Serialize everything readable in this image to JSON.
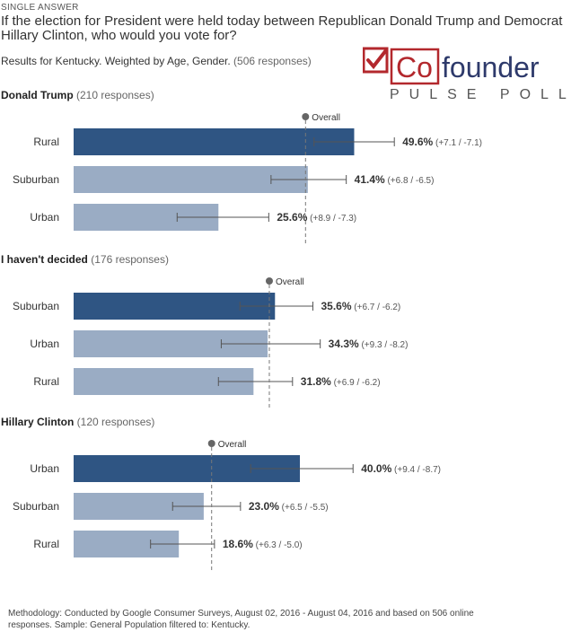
{
  "header": {
    "tag": "SINGLE ANSWER",
    "question_line1": "If the election for President were held today between Republican Donald Trump and Democrat",
    "question_line2": "Hillary Clinton, who would you vote for?",
    "subtitle": "Results for Kentucky. Weighted by Age, Gender.",
    "subtitle_count": "(506 responses)"
  },
  "logo": {
    "brand_co": "Co",
    "brand_founder": "founder",
    "tagline": "PULSE POLL",
    "color_red": "#b3282d",
    "color_navy": "#2e3a6b"
  },
  "overall_label": "Overall",
  "colors": {
    "top_bar": "#2f5583",
    "other_bar": "#9aacc4",
    "whisker": "#555555",
    "overall_line": "#777777"
  },
  "chart_data": [
    {
      "type": "bar",
      "orientation": "horizontal",
      "title": "Donald Trump",
      "responses": "(210 responses)",
      "overall": 41.0,
      "categories": [
        "Rural",
        "Suburban",
        "Urban"
      ],
      "values": [
        49.6,
        41.4,
        25.6
      ],
      "value_labels": [
        "49.6%",
        "41.4%",
        "25.6%"
      ],
      "error_labels": [
        "(+7.1 / -7.1)",
        "(+6.8 / -6.5)",
        "(+8.9 / -7.3)"
      ],
      "error_plus": [
        7.1,
        6.8,
        8.9
      ],
      "error_minus": [
        7.1,
        6.5,
        7.3
      ]
    },
    {
      "type": "bar",
      "orientation": "horizontal",
      "title": "I haven't decided",
      "responses": "(176 responses)",
      "overall": 34.6,
      "categories": [
        "Suburban",
        "Urban",
        "Rural"
      ],
      "values": [
        35.6,
        34.3,
        31.8
      ],
      "value_labels": [
        "35.6%",
        "34.3%",
        "31.8%"
      ],
      "error_labels": [
        "(+6.7 / -6.2)",
        "(+9.3 / -8.2)",
        "(+6.9 / -6.2)"
      ],
      "error_plus": [
        6.7,
        9.3,
        6.9
      ],
      "error_minus": [
        6.2,
        8.2,
        6.2
      ]
    },
    {
      "type": "bar",
      "orientation": "horizontal",
      "title": "Hillary Clinton",
      "responses": "(120 responses)",
      "overall": 24.4,
      "categories": [
        "Urban",
        "Suburban",
        "Rural"
      ],
      "values": [
        40.0,
        23.0,
        18.6
      ],
      "value_labels": [
        "40.0%",
        "23.0%",
        "18.6%"
      ],
      "error_labels": [
        "(+9.4 / -8.7)",
        "(+6.5 / -5.5)",
        "(+6.3 / -5.0)"
      ],
      "error_plus": [
        9.4,
        6.5,
        6.3
      ],
      "error_minus": [
        8.7,
        5.5,
        5.0
      ]
    }
  ],
  "methodology": "Methodology: Conducted by Google Consumer Surveys, August 02, 2016 - August 04, 2016 and based on 506 online responses. Sample: General Population filtered to: Kentucky."
}
